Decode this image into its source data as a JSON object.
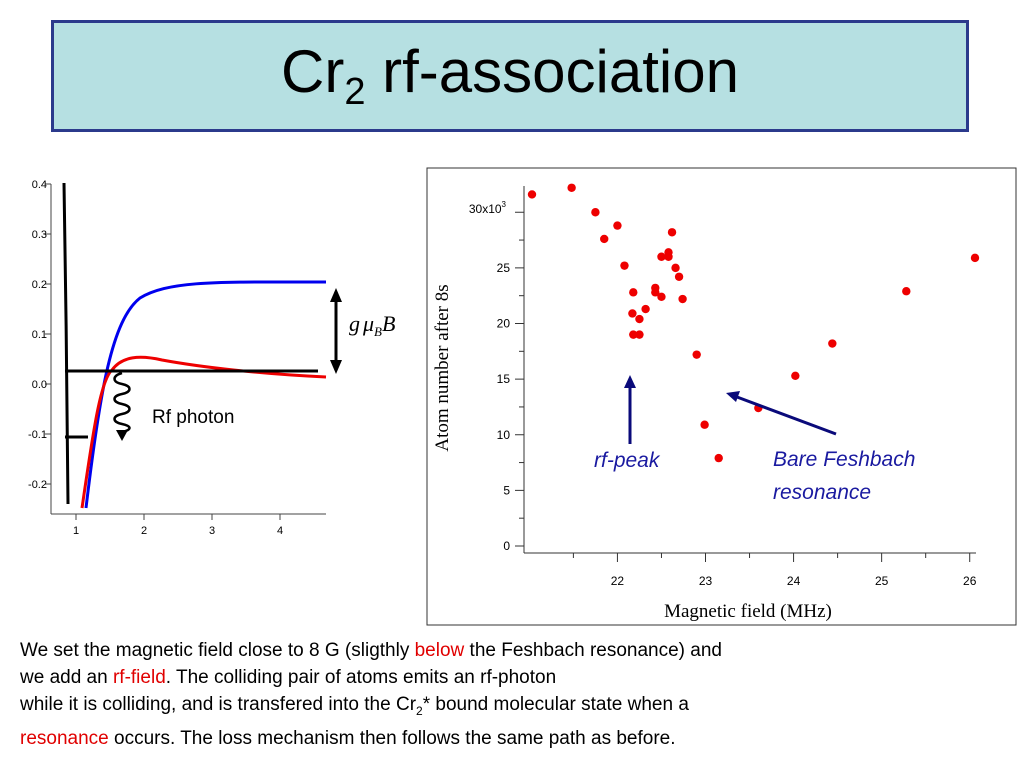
{
  "title": {
    "main": "Cr",
    "sub": "2",
    "rest": " rf-association"
  },
  "left_plot": {
    "y_ticks": [
      "0.4",
      "0.3",
      "0.2",
      "0.1",
      "0.0",
      "-0.1",
      "-0.2"
    ],
    "x_ticks": [
      "1",
      "2",
      "3",
      "4"
    ],
    "energy_label": {
      "g": "g",
      "mu": "μ",
      "sub": "B",
      "B": "B"
    },
    "rf_photon_label": "Rf photon",
    "colors": {
      "blue_curve": "#0000ee",
      "red_curve": "#ee0000"
    }
  },
  "chart_data": {
    "type": "scatter",
    "xlabel": "Magnetic field (MHz)",
    "ylabel": "Atom number after 8s",
    "y_top_label": {
      "base": "30x10",
      "exp": "3"
    },
    "y_ticks": [
      "25",
      "20",
      "15",
      "10",
      "5",
      "0"
    ],
    "x_ticks": [
      "22",
      "23",
      "24",
      "25",
      "26"
    ],
    "xlim": [
      21.03,
      26.06
    ],
    "ylim": [
      0,
      32000
    ],
    "point_color": "#ee0000",
    "points": [
      [
        21.03,
        31600
      ],
      [
        21.48,
        32200
      ],
      [
        21.75,
        30000
      ],
      [
        21.85,
        27600
      ],
      [
        22.0,
        28800
      ],
      [
        22.08,
        25200
      ],
      [
        22.18,
        22800
      ],
      [
        22.17,
        20900
      ],
      [
        22.18,
        19000
      ],
      [
        22.25,
        19000
      ],
      [
        22.25,
        20400
      ],
      [
        22.32,
        21300
      ],
      [
        22.43,
        23200
      ],
      [
        22.43,
        22800
      ],
      [
        22.5,
        22400
      ],
      [
        22.5,
        26000
      ],
      [
        22.58,
        26000
      ],
      [
        22.58,
        26400
      ],
      [
        22.62,
        28200
      ],
      [
        22.66,
        25000
      ],
      [
        22.7,
        24200
      ],
      [
        22.74,
        22200
      ],
      [
        22.9,
        17200
      ],
      [
        22.99,
        10900
      ],
      [
        23.15,
        7900
      ],
      [
        23.6,
        12400
      ],
      [
        24.02,
        15300
      ],
      [
        24.44,
        18200
      ],
      [
        25.28,
        22900
      ],
      [
        26.06,
        25900
      ]
    ],
    "annotations": {
      "rf_peak": "rf-peak",
      "feshbach_line1": "Bare Feshbach",
      "feshbach_line2": "resonance",
      "arrow_color": "#0a0a7a",
      "label_color": "#1a1aa0"
    }
  },
  "caption": {
    "l1a": "We set the magnetic field close to 8 G (sligthly ",
    "l1b": "below",
    "l1c": " the Feshbach resonance) and",
    "l2a": "we add an ",
    "l2b": "rf-field",
    "l2c": ". The colliding pair of atoms emits an rf-photon",
    "l3a": "while it is colliding, and is transfered into the Cr",
    "l3sub": "2",
    "l3b": "* bound molecular state when a",
    "l4a": "resonance",
    "l4b": " occurs. The loss mechanism then follows the same path as before."
  }
}
